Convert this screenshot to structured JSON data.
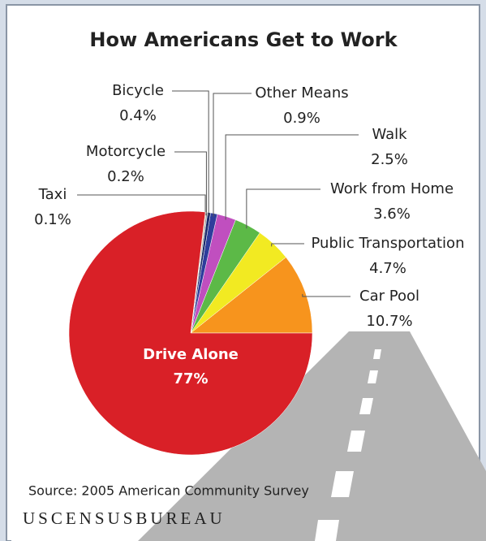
{
  "chart_data": {
    "type": "pie",
    "title": "How Americans Get to Work",
    "categories": [
      "Car Pool",
      "Public Transportation",
      "Work from Home",
      "Walk",
      "Other Means",
      "Bicycle",
      "Motorcycle",
      "Taxi",
      "Drive Alone"
    ],
    "values": [
      10.7,
      4.7,
      3.6,
      2.5,
      0.9,
      0.4,
      0.2,
      0.1,
      77
    ],
    "value_labels": [
      "10.7%",
      "4.7%",
      "3.6%",
      "2.5%",
      "0.9%",
      "0.4%",
      "0.2%",
      "0.1%",
      "77%"
    ],
    "colors": [
      "#f7941d",
      "#f2ea22",
      "#5cb947",
      "#c04fbf",
      "#2e3d9c",
      "#1c2a6b",
      "#9a9a9a",
      "#c8a96e",
      "#d92027"
    ],
    "source": "Source: 2005 American Community Survey",
    "logo": "USCENSUSBUREAU"
  }
}
